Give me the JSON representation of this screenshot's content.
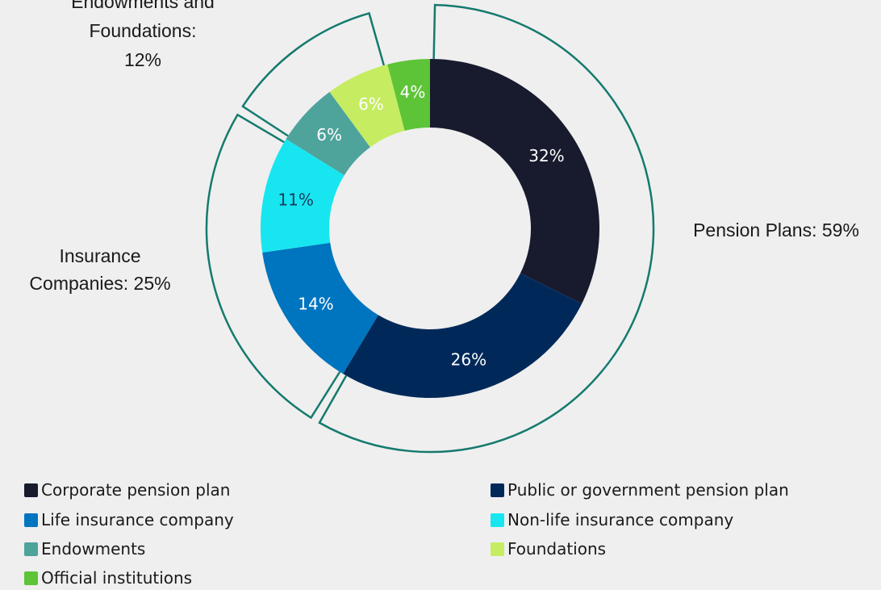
{
  "chart_data": {
    "type": "pie",
    "donut": true,
    "title": "",
    "slices": [
      {
        "label": "Corporate pension plan",
        "value": 32,
        "display": "32%",
        "color": "#181a2e",
        "text_color": "#ffffff"
      },
      {
        "label": "Public or government pension plan",
        "value": 26,
        "display": "26%",
        "color": "#00295a",
        "text_color": "#ffffff"
      },
      {
        "label": "Life insurance company",
        "value": 14,
        "display": "14%",
        "color": "#0075bf",
        "text_color": "#ffffff"
      },
      {
        "label": "Non-life insurance company",
        "value": 11,
        "display": "11%",
        "color": "#17e6f0",
        "text_color": "#1a3a60"
      },
      {
        "label": "Endowments",
        "value": 6,
        "display": "6%",
        "color": "#4ea39b",
        "text_color": "#ffffff"
      },
      {
        "label": "Foundations",
        "value": 6,
        "display": "6%",
        "color": "#c6ec62",
        "text_color": "#ffffff"
      },
      {
        "label": "Official institutions",
        "value": 4,
        "display": "4%",
        "color": "#5dc437",
        "text_color": "#ffffff"
      }
    ],
    "groups": [
      {
        "label_lines": [
          "Pension Plans: 59%"
        ],
        "value": 59
      },
      {
        "label_lines": [
          "Insurance",
          "Companies: 25%"
        ],
        "value": 25
      },
      {
        "label_lines": [
          "Endowments and",
          "Foundations:",
          "12%"
        ],
        "value": 12
      }
    ],
    "bracket_color": "#157a6e",
    "legend_placement": "bottom"
  }
}
